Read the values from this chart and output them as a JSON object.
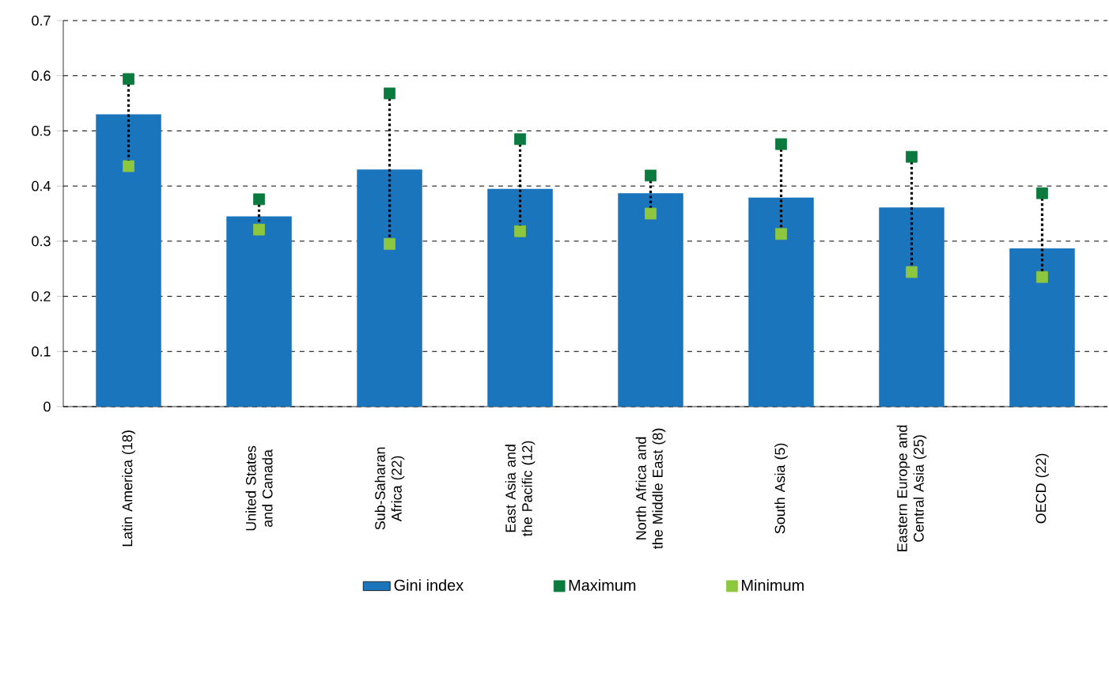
{
  "chart_data": {
    "type": "bar",
    "categories": [
      "Latin America (18)",
      "United States and Canada",
      "Sub-Saharan Africa (22)",
      "East Asia and the Pacific (12)",
      "North Africa and the Middle East (8)",
      "South Asia (5)",
      "Eastern Europe and Central Asia (25)",
      "OECD (22)"
    ],
    "series": [
      {
        "name": "Gini index",
        "color": "#1a75bc",
        "values": [
          0.53,
          0.345,
          0.43,
          0.395,
          0.387,
          0.379,
          0.361,
          0.287
        ]
      },
      {
        "name": "Maximum",
        "type": "scatter",
        "color": "#0b7a3e",
        "values": [
          0.594,
          0.376,
          0.568,
          0.485,
          0.419,
          0.476,
          0.453,
          0.387
        ]
      },
      {
        "name": "Minimum",
        "type": "scatter",
        "color": "#8dc63f",
        "values": [
          0.436,
          0.321,
          0.295,
          0.318,
          0.35,
          0.313,
          0.244,
          0.235
        ]
      }
    ],
    "ylim": [
      0,
      0.7
    ],
    "yticks": [
      0,
      0.1,
      0.2,
      0.3,
      0.4,
      0.5,
      0.6,
      0.7
    ],
    "grid": "y",
    "legend": "bottom",
    "marker": "square"
  }
}
